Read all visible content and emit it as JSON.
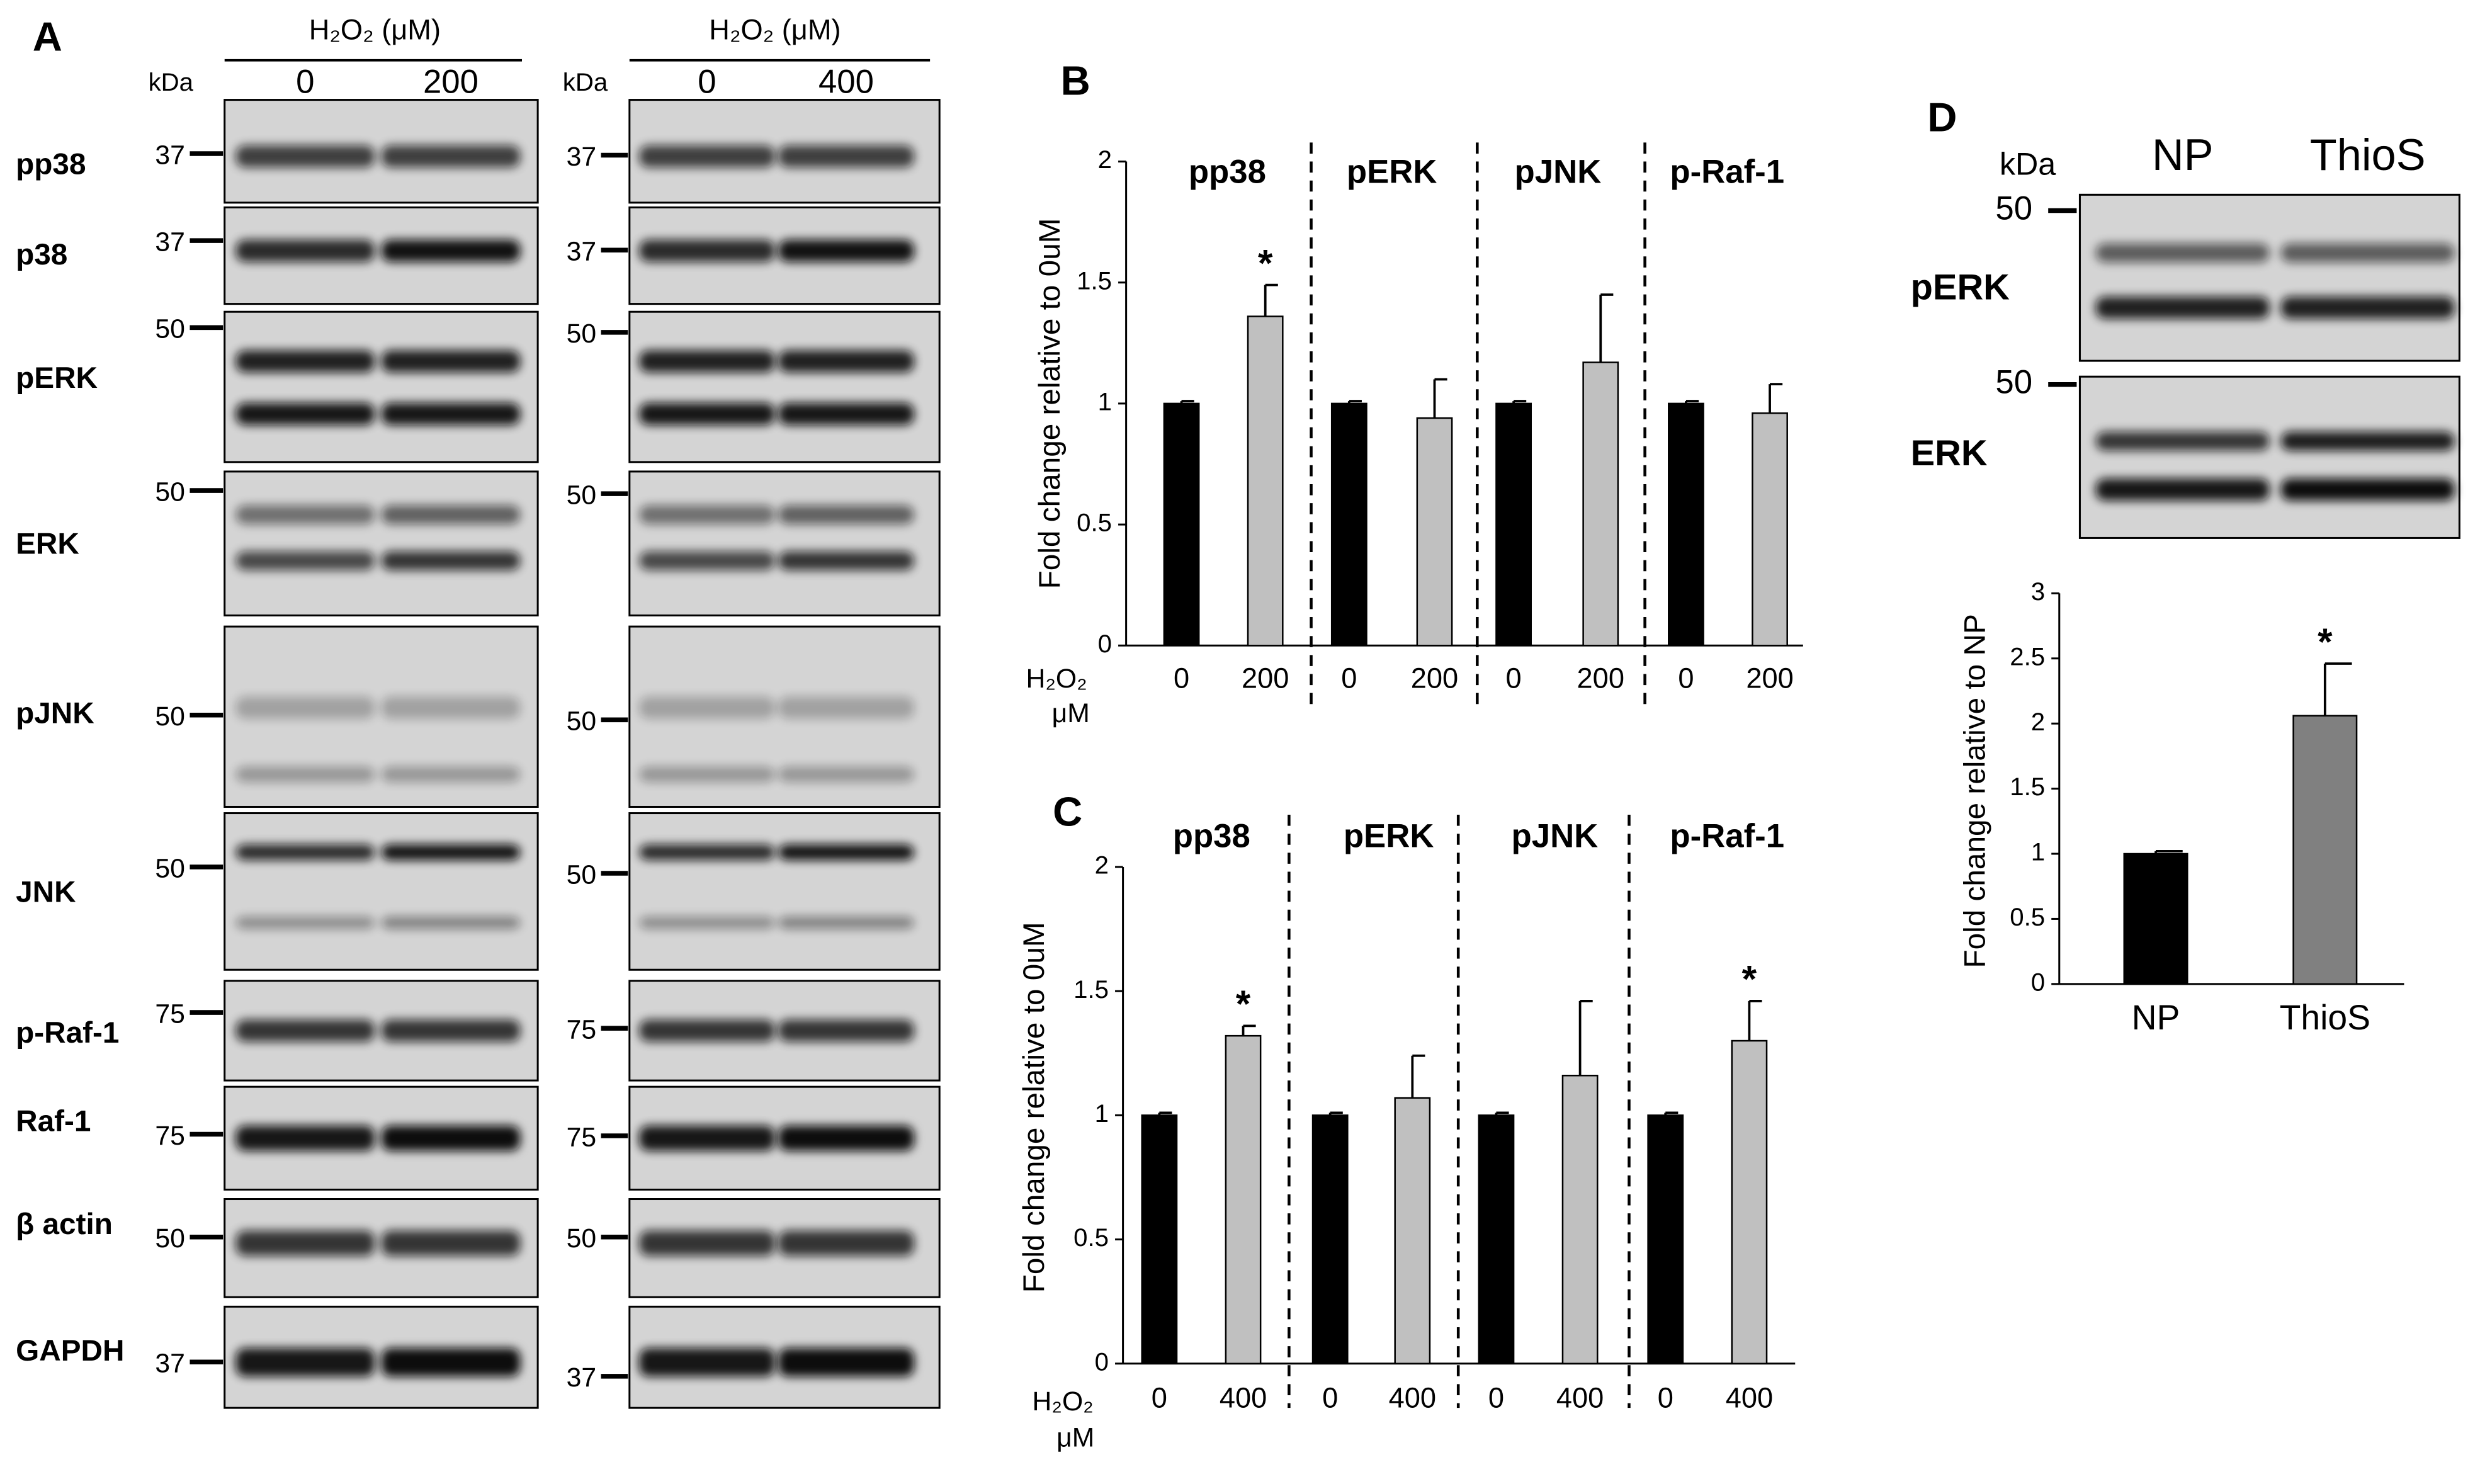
{
  "blots": [
    {
      "label": "A",
      "header": "H₂O₂ (μM)",
      "kda": "kDa",
      "lanes": [
        "0",
        "200"
      ],
      "rows": [
        {
          "name": "pp38",
          "marker": 37
        },
        {
          "name": "p38",
          "marker": 37
        },
        {
          "name": "pERK",
          "marker": 50
        },
        {
          "name": "ERK",
          "marker": 50
        },
        {
          "name": "pJNK",
          "marker": 50
        },
        {
          "name": "JNK",
          "marker": 50
        },
        {
          "name": "p-Raf-1",
          "marker": 75
        },
        {
          "name": "Raf-1",
          "marker": 75
        },
        {
          "name": "β actin",
          "marker": 50
        },
        {
          "name": "GAPDH",
          "marker": 37
        }
      ]
    },
    {
      "header": "H₂O₂ (μM)",
      "kda": "kDa",
      "lanes": [
        "0",
        "400"
      ],
      "rows": [
        {
          "marker": 37
        },
        {
          "marker": 37
        },
        {
          "marker": 50
        },
        {
          "marker": 50
        },
        {
          "marker": 50
        },
        {
          "marker": 50
        },
        {
          "marker": 75
        },
        {
          "marker": 75
        },
        {
          "marker": 50
        },
        {
          "marker": 37
        }
      ]
    },
    {
      "label": "D",
      "kda": "kDa",
      "lanes": [
        "NP",
        "ThioS"
      ],
      "rows": [
        {
          "name": "pERK",
          "marker": 50
        },
        {
          "name": "ERK",
          "marker": 50
        }
      ]
    }
  ],
  "chart_data": [
    {
      "type": "bar",
      "label": "B",
      "groups": [
        "pp38",
        "pERK",
        "pJNK",
        "p-Raf-1"
      ],
      "categories": [
        "0",
        "200",
        "0",
        "200",
        "0",
        "200",
        "0",
        "200"
      ],
      "values": [
        1,
        1.36,
        1,
        0.94,
        1,
        1.17,
        1,
        0.96
      ],
      "errors": [
        0.01,
        0.13,
        0.01,
        0.16,
        0.01,
        0.28,
        0.01,
        0.12
      ],
      "colors": [
        "#000000",
        "#c0c0c0"
      ],
      "ylabel": "Fold change relative to 0uM",
      "x_label": "H₂O₂",
      "x_unit": "μM",
      "ylim": [
        0,
        2
      ],
      "yticks": [
        0,
        0.5,
        1,
        1.5,
        2
      ],
      "annotations": [
        {
          "text": "*",
          "index": 1
        }
      ]
    },
    {
      "type": "bar",
      "label": "C",
      "groups": [
        "pp38",
        "pERK",
        "pJNK",
        "p-Raf-1"
      ],
      "categories": [
        "0",
        "400",
        "0",
        "400",
        "0",
        "400",
        "0",
        "400"
      ],
      "values": [
        1,
        1.32,
        1,
        1.07,
        1,
        1.16,
        1,
        1.3
      ],
      "errors": [
        0.01,
        0.04,
        0.01,
        0.17,
        0.01,
        0.3,
        0.01,
        0.16
      ],
      "colors": [
        "#000000",
        "#c0c0c0"
      ],
      "ylabel": "Fold change relative to 0uM",
      "x_label": "H₂O₂",
      "x_unit": "μM",
      "ylim": [
        0,
        2
      ],
      "yticks": [
        0,
        0.5,
        1,
        1.5,
        2
      ],
      "annotations": [
        {
          "text": "*",
          "index": 1
        },
        {
          "text": "*",
          "index": 7
        }
      ]
    },
    {
      "type": "bar",
      "categories": [
        "NP",
        "ThioS"
      ],
      "values": [
        1,
        2.06
      ],
      "errors": [
        0.02,
        0.4
      ],
      "colors": [
        "#000000",
        "#808080"
      ],
      "ylabel": "Fold change relative to NP",
      "ylim": [
        0,
        3
      ],
      "yticks": [
        0,
        0.5,
        1,
        1.5,
        2,
        2.5,
        3
      ],
      "annotations": [
        {
          "text": "*",
          "index": 1
        }
      ]
    }
  ]
}
